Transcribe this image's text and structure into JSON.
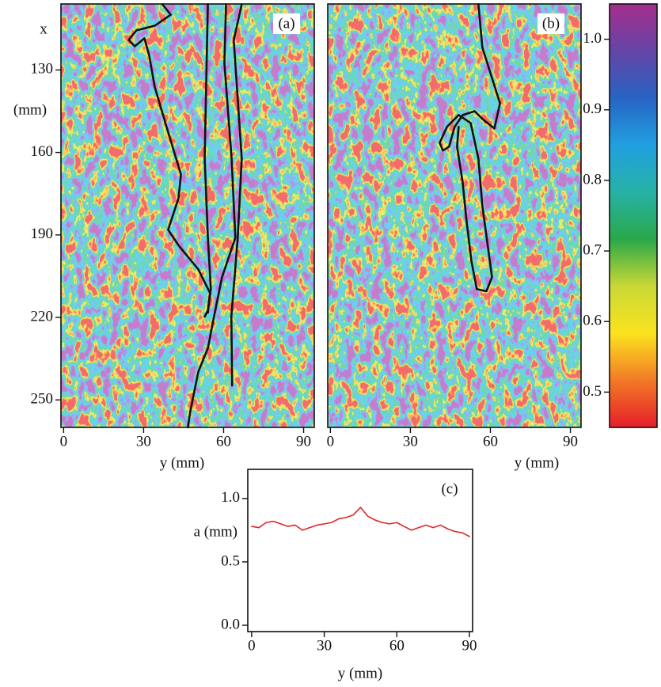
{
  "chart_data": [
    {
      "type": "heatmap",
      "label": "(a)",
      "xlabel": "y (mm)",
      "ylabel": [
        "x",
        "(mm)"
      ],
      "xlim": [
        -1,
        94
      ],
      "ylim": [
        106,
        260
      ],
      "xticks": [
        0,
        30,
        60,
        90
      ],
      "yticks": [
        130,
        160,
        190,
        220,
        250
      ],
      "series": [
        {
          "color": "#111111",
          "x": [
            37.0,
            40.2,
            34.2,
            27.3,
            24.4,
            26.7,
            30.3,
            32.1,
            34.2,
            38.6,
            44.0,
            43.1,
            39.2,
            43.1,
            50.5,
            54.9,
            54.1,
            52.9
          ],
          "values": [
            106.1,
            109.9,
            113.9,
            115.6,
            119.1,
            121.4,
            118.5,
            124.8,
            136.3,
            150.7,
            168.0,
            176.6,
            188.1,
            193.8,
            202.5,
            211.1,
            217.4,
            219.7
          ]
        },
        {
          "color": "#111111",
          "x": [
            54.1,
            53.5,
            52.9,
            54.1,
            55.2,
            54.1
          ],
          "values": [
            106.1,
            133.4,
            162.2,
            191.0,
            209.7,
            218.3
          ]
        },
        {
          "color": "#111111",
          "x": [
            60.9,
            60.3,
            63.0,
            64.4,
            59.4,
            56.4,
            54.1,
            50.5,
            47.5,
            46.6
          ],
          "values": [
            106.1,
            127.6,
            162.2,
            191.0,
            205.4,
            219.7,
            231.2,
            239.8,
            254.2,
            260
          ]
        },
        {
          "color": "#111111",
          "x": [
            66.8,
            63.8,
            66.8,
            65.3,
            62.9,
            63.2
          ],
          "values": [
            106.1,
            119.1,
            162.2,
            191.0,
            219.7,
            244.7
          ]
        }
      ]
    },
    {
      "type": "heatmap",
      "label": "(b)",
      "xlabel": "y (mm)",
      "xlim": [
        -1,
        94
      ],
      "ylim": [
        106,
        260
      ],
      "xticks": [
        0,
        30,
        60,
        90
      ],
      "series": [
        {
          "color": "#111111",
          "x": [
            55.5,
            57.0,
            63.6,
            61.5,
            57.0,
            54.1,
            49.6,
            46.6,
            44.5,
            42.2,
            41.0,
            43.7,
            48.1,
            52.6,
            55.5,
            57.0,
            59.4,
            60.6,
            58.5,
            54.9,
            52.9,
            51.1,
            49.6,
            47.5,
            48.1
          ],
          "values": [
            106.1,
            121.9,
            142.1,
            151.3,
            147.8,
            145.0,
            146.4,
            150.7,
            157.9,
            159.3,
            156.5,
            150.7,
            146.4,
            149.3,
            162.2,
            179.5,
            196.7,
            205.4,
            210.5,
            209.7,
            199.6,
            185.2,
            170.8,
            157.9,
            150.7
          ]
        }
      ]
    },
    {
      "type": "colorbar",
      "label": [
        "a",
        "(mm)"
      ],
      "ylim": [
        0.45,
        1.05
      ],
      "yticks": [
        0.5,
        0.6,
        0.7,
        0.8,
        0.9,
        {
          "value": 1,
          "label": "1.0"
        }
      ],
      "colors": [
        "#e61e2a",
        "#f27a26",
        "#fbe31f",
        "#c9d836",
        "#2aa84a",
        "#27b1a6",
        "#21a0e0",
        "#2763c4",
        "#6445a6",
        "#a52e8c"
      ]
    },
    {
      "type": "line",
      "label": "(c)",
      "xlabel": "y (mm)",
      "ylabel": "a (mm)",
      "xlim": [
        -1.6,
        91.3
      ],
      "ylim": [
        -0.05,
        1.23
      ],
      "xticks": [
        0,
        30,
        60,
        90
      ],
      "yticks": [
        {
          "value": 0,
          "label": "0.0"
        },
        0.5,
        {
          "value": 1,
          "label": "1.0"
        }
      ],
      "x": [
        0,
        3,
        6,
        9,
        12,
        15,
        18,
        21,
        24,
        27,
        30,
        33,
        36,
        39,
        42,
        45,
        48,
        51,
        54,
        57,
        60,
        63,
        66,
        69,
        72,
        75,
        78,
        81,
        84,
        87,
        90
      ],
      "series": [
        {
          "color": "#e0262a",
          "values": [
            0.78,
            0.77,
            0.81,
            0.82,
            0.8,
            0.78,
            0.79,
            0.75,
            0.77,
            0.79,
            0.8,
            0.81,
            0.84,
            0.85,
            0.87,
            0.93,
            0.86,
            0.83,
            0.81,
            0.8,
            0.81,
            0.78,
            0.75,
            0.77,
            0.79,
            0.77,
            0.79,
            0.76,
            0.74,
            0.73,
            0.7
          ]
        }
      ]
    }
  ]
}
